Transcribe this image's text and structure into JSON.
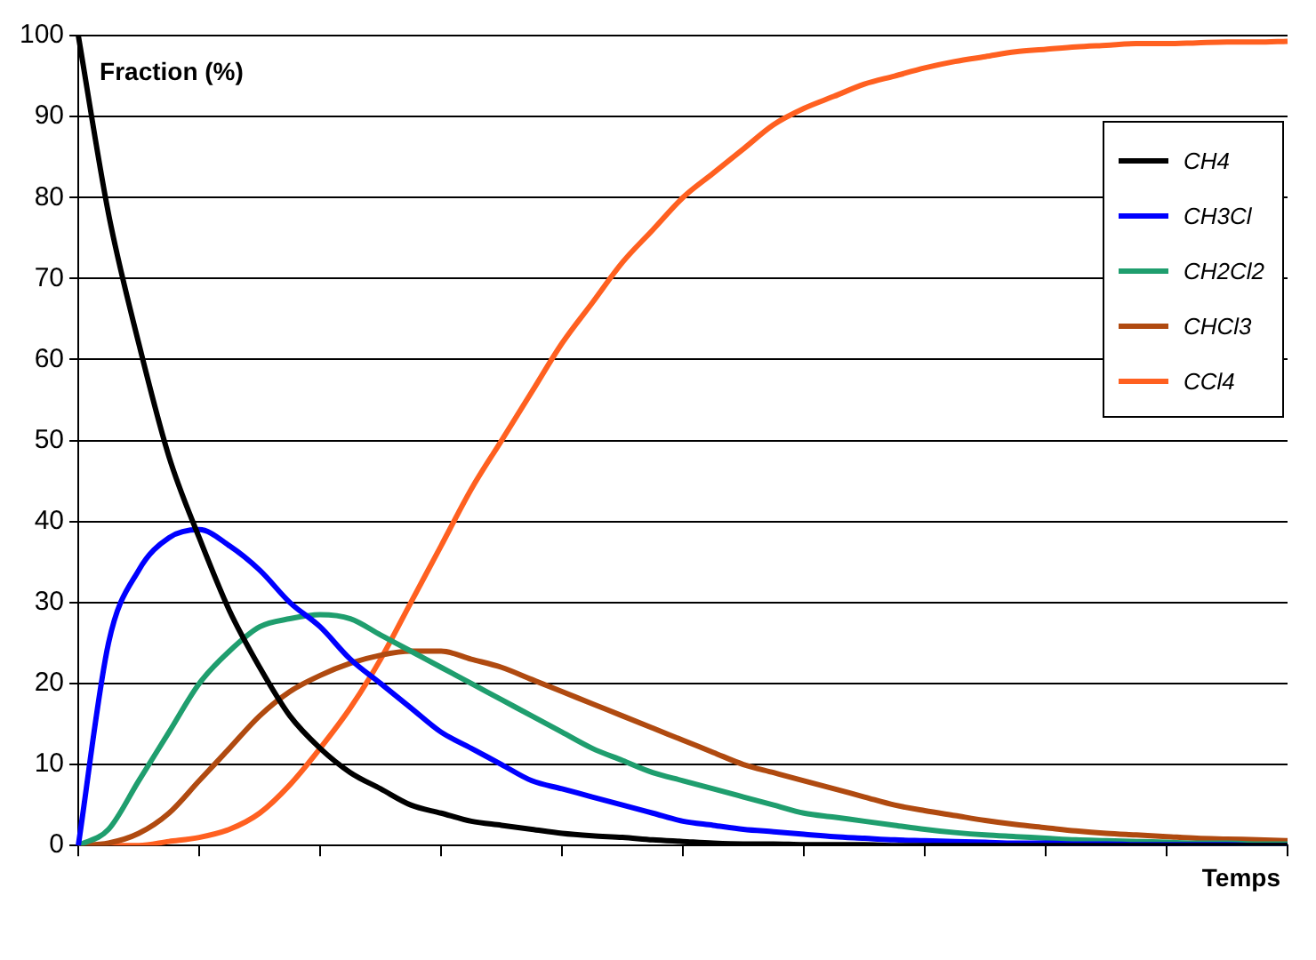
{
  "chart_data": {
    "type": "line",
    "xlabel": "Temps",
    "ylabel": "Fraction (%)",
    "categories": [
      null,
      null,
      null,
      null,
      null,
      null,
      null,
      null,
      null,
      null,
      null,
      null,
      null,
      null,
      null,
      null,
      null,
      null,
      null,
      null,
      null,
      null,
      null,
      null,
      null,
      null,
      null,
      null,
      null,
      null,
      null,
      null,
      null,
      null,
      null,
      null,
      null,
      null,
      null,
      null,
      null
    ],
    "ylim": [
      0,
      100
    ],
    "yticks": [
      0,
      10,
      20,
      30,
      40,
      50,
      60,
      70,
      80,
      90,
      100
    ],
    "grid": "y",
    "legend": "top right",
    "series": [
      {
        "name": "CH4",
        "color": "#000000",
        "values": [
          100,
          78,
          62,
          48,
          38,
          29,
          22,
          16,
          12,
          9,
          7,
          5,
          4,
          3,
          2.5,
          2,
          1.5,
          1.2,
          1,
          0.7,
          0.5,
          0.3,
          0.2,
          0.2,
          0.1,
          0.1,
          0.1,
          0,
          0,
          0,
          0,
          0,
          0,
          0,
          0,
          0,
          0,
          0,
          0,
          0,
          0
        ]
      },
      {
        "name": "CH3Cl",
        "color": "#0000ff",
        "values": [
          0,
          25,
          34,
          38,
          39,
          37,
          34,
          30,
          27,
          23,
          20,
          17,
          14,
          12,
          10,
          8,
          7,
          6,
          5,
          4,
          3,
          2.5,
          2,
          1.7,
          1.4,
          1.1,
          0.9,
          0.7,
          0.6,
          0.5,
          0.4,
          0.3,
          0.3,
          0.2,
          0.2,
          0.1,
          0.1,
          0.1,
          0.1,
          0,
          0
        ]
      },
      {
        "name": "CH2Cl2",
        "color": "#1f9e6e",
        "values": [
          0,
          2,
          8,
          14,
          20,
          24,
          27,
          28,
          28.5,
          28,
          26,
          24,
          22,
          20,
          18,
          16,
          14,
          12,
          10.5,
          9,
          8,
          7,
          6,
          5,
          4,
          3.5,
          3,
          2.5,
          2,
          1.6,
          1.3,
          1.1,
          0.9,
          0.7,
          0.6,
          0.5,
          0.4,
          0.3,
          0.3,
          0.2,
          0.2
        ]
      },
      {
        "name": "CHCl3",
        "color": "#b04a10",
        "values": [
          0,
          0.3,
          1.5,
          4,
          8,
          12,
          16,
          19,
          21,
          22.5,
          23.5,
          24,
          24,
          23,
          22,
          20.5,
          19,
          17.5,
          16,
          14.5,
          13,
          11.5,
          10,
          9,
          8,
          7,
          6,
          5,
          4.3,
          3.7,
          3.1,
          2.6,
          2.2,
          1.8,
          1.5,
          1.3,
          1.1,
          0.9,
          0.8,
          0.7,
          0.6
        ]
      },
      {
        "name": "CCl4",
        "color": "#ff6020",
        "values": [
          0,
          0,
          0,
          0.5,
          1,
          2,
          4,
          7.5,
          12,
          17,
          23,
          30,
          37,
          44,
          50,
          56,
          62,
          67,
          72,
          76,
          80,
          83,
          86,
          89,
          91,
          92.5,
          94,
          95,
          96,
          96.8,
          97.4,
          98,
          98.3,
          98.6,
          98.8,
          99,
          99,
          99.1,
          99.2,
          99.2,
          99.3
        ]
      }
    ]
  }
}
